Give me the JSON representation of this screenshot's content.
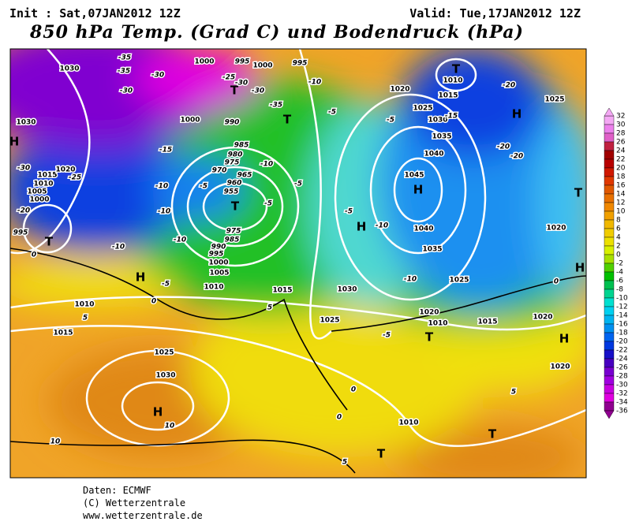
{
  "header": {
    "init": "Init : Sat,07JAN2012 12Z",
    "valid": "Valid: Tue,17JAN2012 12Z",
    "title": "850 hPa Temp. (Grad C) und Bodendruck (hPa)"
  },
  "map": {
    "labels": [
      "H",
      "H",
      "H",
      "H",
      "H",
      "H",
      "H",
      "H",
      "T",
      "T",
      "T",
      "T",
      "T",
      "T",
      "T",
      "T",
      "T",
      "1030",
      "1030",
      "1015",
      "1010",
      "1005",
      "1000",
      "995",
      "1020",
      "1000",
      "995",
      "1000",
      "995",
      "1000",
      "990",
      "985",
      "980",
      "975",
      "970",
      "965",
      "960",
      "955",
      "975",
      "985",
      "990",
      "995",
      "1000",
      "1005",
      "1010",
      "1015",
      "1010",
      "1015",
      "1025",
      "1030",
      "1030",
      "1025",
      "1020",
      "1025",
      "1030",
      "1035",
      "1040",
      "1045",
      "1040",
      "1035",
      "1025",
      "1020",
      "1010",
      "1015",
      "1010",
      "1015",
      "1025",
      "1020",
      "1020",
      "1020",
      "1010",
      "-35",
      "-35",
      "-30",
      "-30",
      "-25",
      "-30",
      "-30",
      "-35",
      "-15",
      "-10",
      "-10",
      "-10",
      "-10",
      "-5",
      "0",
      "5",
      "-10",
      "-5",
      "-5",
      "-15",
      "-20",
      "-20",
      "-20",
      "-10",
      "-5",
      "-5",
      "-5",
      "-5",
      "-10",
      "-10",
      "-5",
      "5",
      "0",
      "5",
      "0",
      "0",
      "10",
      "10",
      "5",
      "-30",
      "-25",
      "-20",
      "0"
    ]
  },
  "colorbar": {
    "labels": [
      32,
      30,
      28,
      26,
      24,
      22,
      20,
      18,
      16,
      14,
      12,
      10,
      8,
      6,
      4,
      2,
      0,
      -2,
      -4,
      -6,
      -8,
      -10,
      -12,
      -14,
      -16,
      -18,
      -20,
      -22,
      -24,
      -26,
      -28,
      -30,
      -32,
      -34,
      -36
    ],
    "colors": [
      "#f4a8f4",
      "#ec80ec",
      "#e060c8",
      "#c02040",
      "#a00000",
      "#b80000",
      "#d01800",
      "#e03800",
      "#e05800",
      "#e87000",
      "#f08800",
      "#f0a000",
      "#f0b800",
      "#f0cc00",
      "#ece000",
      "#d8f000",
      "#a8e000",
      "#50d000",
      "#00c000",
      "#00c050",
      "#00d490",
      "#00e0d0",
      "#00d0f0",
      "#00b4f0",
      "#0090f0",
      "#0064f0",
      "#0038e0",
      "#1810c8",
      "#4800c0",
      "#7800d0",
      "#a000e0",
      "#c800e0",
      "#e000e0",
      "#900090"
    ]
  },
  "footer": {
    "lines": [
      "Daten: ECMWF",
      "(C) Wetterzentrale",
      "www.wetterzentrale.de"
    ]
  }
}
